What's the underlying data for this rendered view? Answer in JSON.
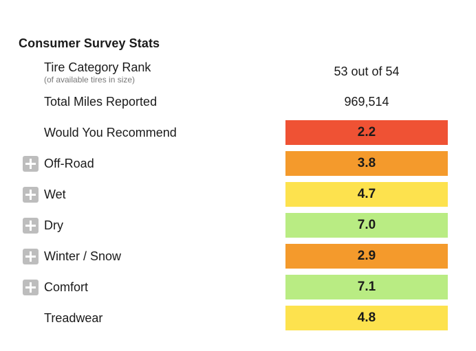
{
  "title": "Consumer Survey Stats",
  "stats": {
    "rank": {
      "label": "Tire Category Rank",
      "sublabel": "(of available tires in size)",
      "value": "53 out of 54"
    },
    "miles": {
      "label": "Total Miles Reported",
      "value": "969,514"
    }
  },
  "ratings": [
    {
      "label": "Would You Recommend",
      "score": "2.2",
      "color": "#ef5234",
      "expandable": false
    },
    {
      "label": "Off-Road",
      "score": "3.8",
      "color": "#f49a2c",
      "expandable": true
    },
    {
      "label": "Wet",
      "score": "4.7",
      "color": "#fde24e",
      "expandable": true
    },
    {
      "label": "Dry",
      "score": "7.0",
      "color": "#b9ec83",
      "expandable": true
    },
    {
      "label": "Winter / Snow",
      "score": "2.9",
      "color": "#f49a2c",
      "expandable": true
    },
    {
      "label": "Comfort",
      "score": "7.1",
      "color": "#b9ec83",
      "expandable": true
    },
    {
      "label": "Treadwear",
      "score": "4.8",
      "color": "#fde24e",
      "expandable": false
    }
  ],
  "icons": {
    "expand": "plus-icon"
  }
}
